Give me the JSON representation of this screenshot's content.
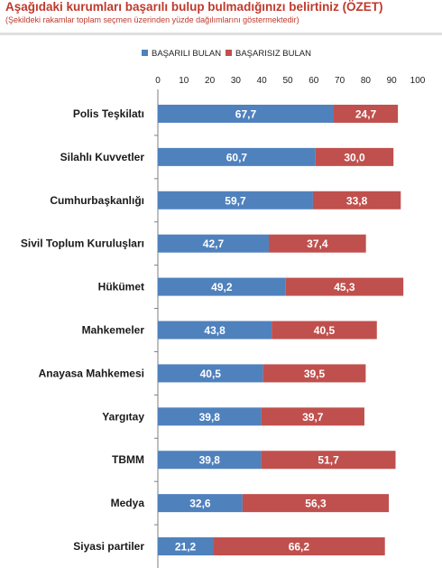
{
  "title": "Aşağıdaki kurumları başarılı bulup bulmadığınızı belirtiniz (ÖZET)",
  "subtitle": "(Şekildeki rakamlar toplam seçmen üzerinden yüzde dağılımlarını göstermektedir)",
  "colors": {
    "basarili": "#4f81bd",
    "basarisiz": "#c0504d"
  },
  "chart_data": {
    "type": "bar",
    "orientation": "horizontal",
    "stacked": true,
    "xlim": [
      0,
      100
    ],
    "ticks": [
      0,
      10,
      20,
      30,
      40,
      50,
      60,
      70,
      80,
      90,
      100
    ],
    "tick_labels": [
      "0",
      "10",
      "20",
      "30",
      "40",
      "50",
      "60",
      "70",
      "80",
      "90",
      "100"
    ],
    "legend_position": "top",
    "categories": [
      "Polis Teşkilatı",
      "Silahlı Kuvvetler",
      "Cumhurbaşkanlığı",
      "Sivil Toplum Kuruluşları",
      "Hükümet",
      "Mahkemeler",
      "Anayasa Mahkemesi",
      "Yargıtay",
      "TBMM",
      "Medya",
      "Siyasi partiler"
    ],
    "series": [
      {
        "name": "BAŞARILI BULAN",
        "values": [
          67.7,
          60.7,
          59.7,
          42.7,
          49.2,
          43.8,
          40.5,
          39.8,
          39.8,
          32.6,
          21.2
        ],
        "labels": [
          "67,7",
          "60,7",
          "59,7",
          "42,7",
          "49,2",
          "43,8",
          "40,5",
          "39,8",
          "39,8",
          "32,6",
          "21,2"
        ]
      },
      {
        "name": "BAŞARISIZ BULAN",
        "values": [
          24.7,
          30.0,
          33.8,
          37.4,
          45.3,
          40.5,
          39.5,
          39.7,
          51.7,
          56.3,
          66.2
        ],
        "labels": [
          "24,7",
          "30,0",
          "33,8",
          "37,4",
          "45,3",
          "40,5",
          "39,5",
          "39,7",
          "51,7",
          "56,3",
          "66,2"
        ]
      }
    ]
  }
}
